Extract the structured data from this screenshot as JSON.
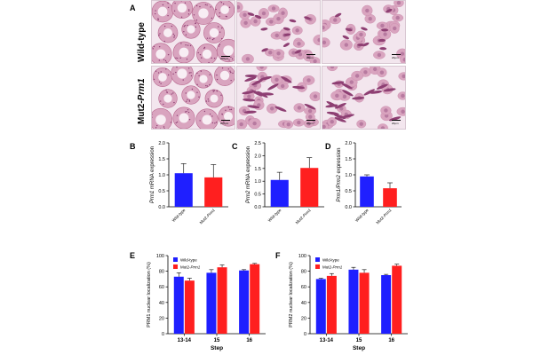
{
  "panel_a": {
    "letter": "A",
    "rows": [
      {
        "label_main": "Wild-type",
        "label_italic": ""
      },
      {
        "label_main": "Mut2-",
        "label_italic": "Prm1"
      }
    ],
    "scalebars": [
      "200μm",
      "20μm",
      "20μm",
      "200μm",
      "20μm",
      "20μm"
    ],
    "colors": {
      "tissue_bg": "#f3e6ee",
      "tissue_pink": "#d9a4bf",
      "nuclei": "#8e3f73",
      "stain_dark": "#b8688f"
    }
  },
  "panels": {
    "b": {
      "letter": "B"
    },
    "c": {
      "letter": "C"
    },
    "d": {
      "letter": "D"
    },
    "e": {
      "letter": "E"
    },
    "f": {
      "letter": "F"
    }
  },
  "colors": {
    "wild_type": "#1f1fff",
    "mut2": "#ff1f1f"
  },
  "chart_data": [
    {
      "id": "B",
      "type": "bar",
      "ylabel_italic": "Prm1",
      "ylabel_rest": " mRNA expression",
      "categories": [
        {
          "main": "Wild-type",
          "italic": ""
        },
        {
          "main": "Mut2-",
          "italic": "Prm1"
        }
      ],
      "values": [
        1.05,
        0.92
      ],
      "errors": [
        0.3,
        0.4
      ],
      "ylim": [
        0,
        2.0
      ],
      "yticks": [
        "0.0",
        "0.5",
        "1.0",
        "1.5",
        "2.0"
      ]
    },
    {
      "id": "C",
      "type": "bar",
      "ylabel_italic": "Prm2",
      "ylabel_rest": " mRNA expression",
      "categories": [
        {
          "main": "Wild-type",
          "italic": ""
        },
        {
          "main": "Mut2-",
          "italic": "Prm1"
        }
      ],
      "values": [
        1.05,
        1.52
      ],
      "errors": [
        0.3,
        0.4
      ],
      "ylim": [
        0,
        2.5
      ],
      "yticks": [
        "0.0",
        "0.5",
        "1.0",
        "1.5",
        "2.0",
        "2.5"
      ]
    },
    {
      "id": "D",
      "type": "bar",
      "ylabel_italic": "Prm1/Prm2",
      "ylabel_rest": " expression",
      "categories": [
        {
          "main": "Wild-type",
          "italic": ""
        },
        {
          "main": "Mut2-",
          "italic": "Prm1"
        }
      ],
      "values": [
        0.95,
        0.58
      ],
      "errors": [
        0.05,
        0.17
      ],
      "ylim": [
        0,
        2.0
      ],
      "yticks": [
        "0.0",
        "0.5",
        "1.0",
        "1.5",
        "2.0"
      ]
    },
    {
      "id": "E",
      "type": "bar",
      "ylabel": "PRM1 nuclear localization (%)",
      "xlabel": "Step",
      "categories": [
        "13-14",
        "15",
        "16"
      ],
      "series": [
        {
          "name_main": "Wild-type",
          "name_italic": "",
          "values": [
            73,
            78,
            81
          ],
          "errors": [
            5,
            4,
            1
          ]
        },
        {
          "name_main": "Mut2-",
          "name_italic": "Prm1",
          "values": [
            68,
            85,
            89
          ],
          "errors": [
            3,
            3,
            1
          ]
        }
      ],
      "ylim": [
        0,
        100
      ],
      "yticks": [
        "0",
        "20",
        "40",
        "60",
        "80",
        "100"
      ],
      "legend": "top-left"
    },
    {
      "id": "F",
      "type": "bar",
      "ylabel": "PRM2 nuclear localization (%)",
      "xlabel": "Step",
      "categories": [
        "13-14",
        "15",
        "16"
      ],
      "series": [
        {
          "name_main": "Wild-type",
          "name_italic": "",
          "values": [
            70,
            82,
            75
          ],
          "errors": [
            1,
            3,
            1
          ]
        },
        {
          "name_main": "Mut2-",
          "name_italic": "Prm1",
          "values": [
            74,
            78,
            87
          ],
          "errors": [
            3,
            4,
            2
          ]
        }
      ],
      "ylim": [
        0,
        100
      ],
      "yticks": [
        "0",
        "20",
        "40",
        "60",
        "80",
        "100"
      ],
      "legend": "top-left"
    }
  ]
}
